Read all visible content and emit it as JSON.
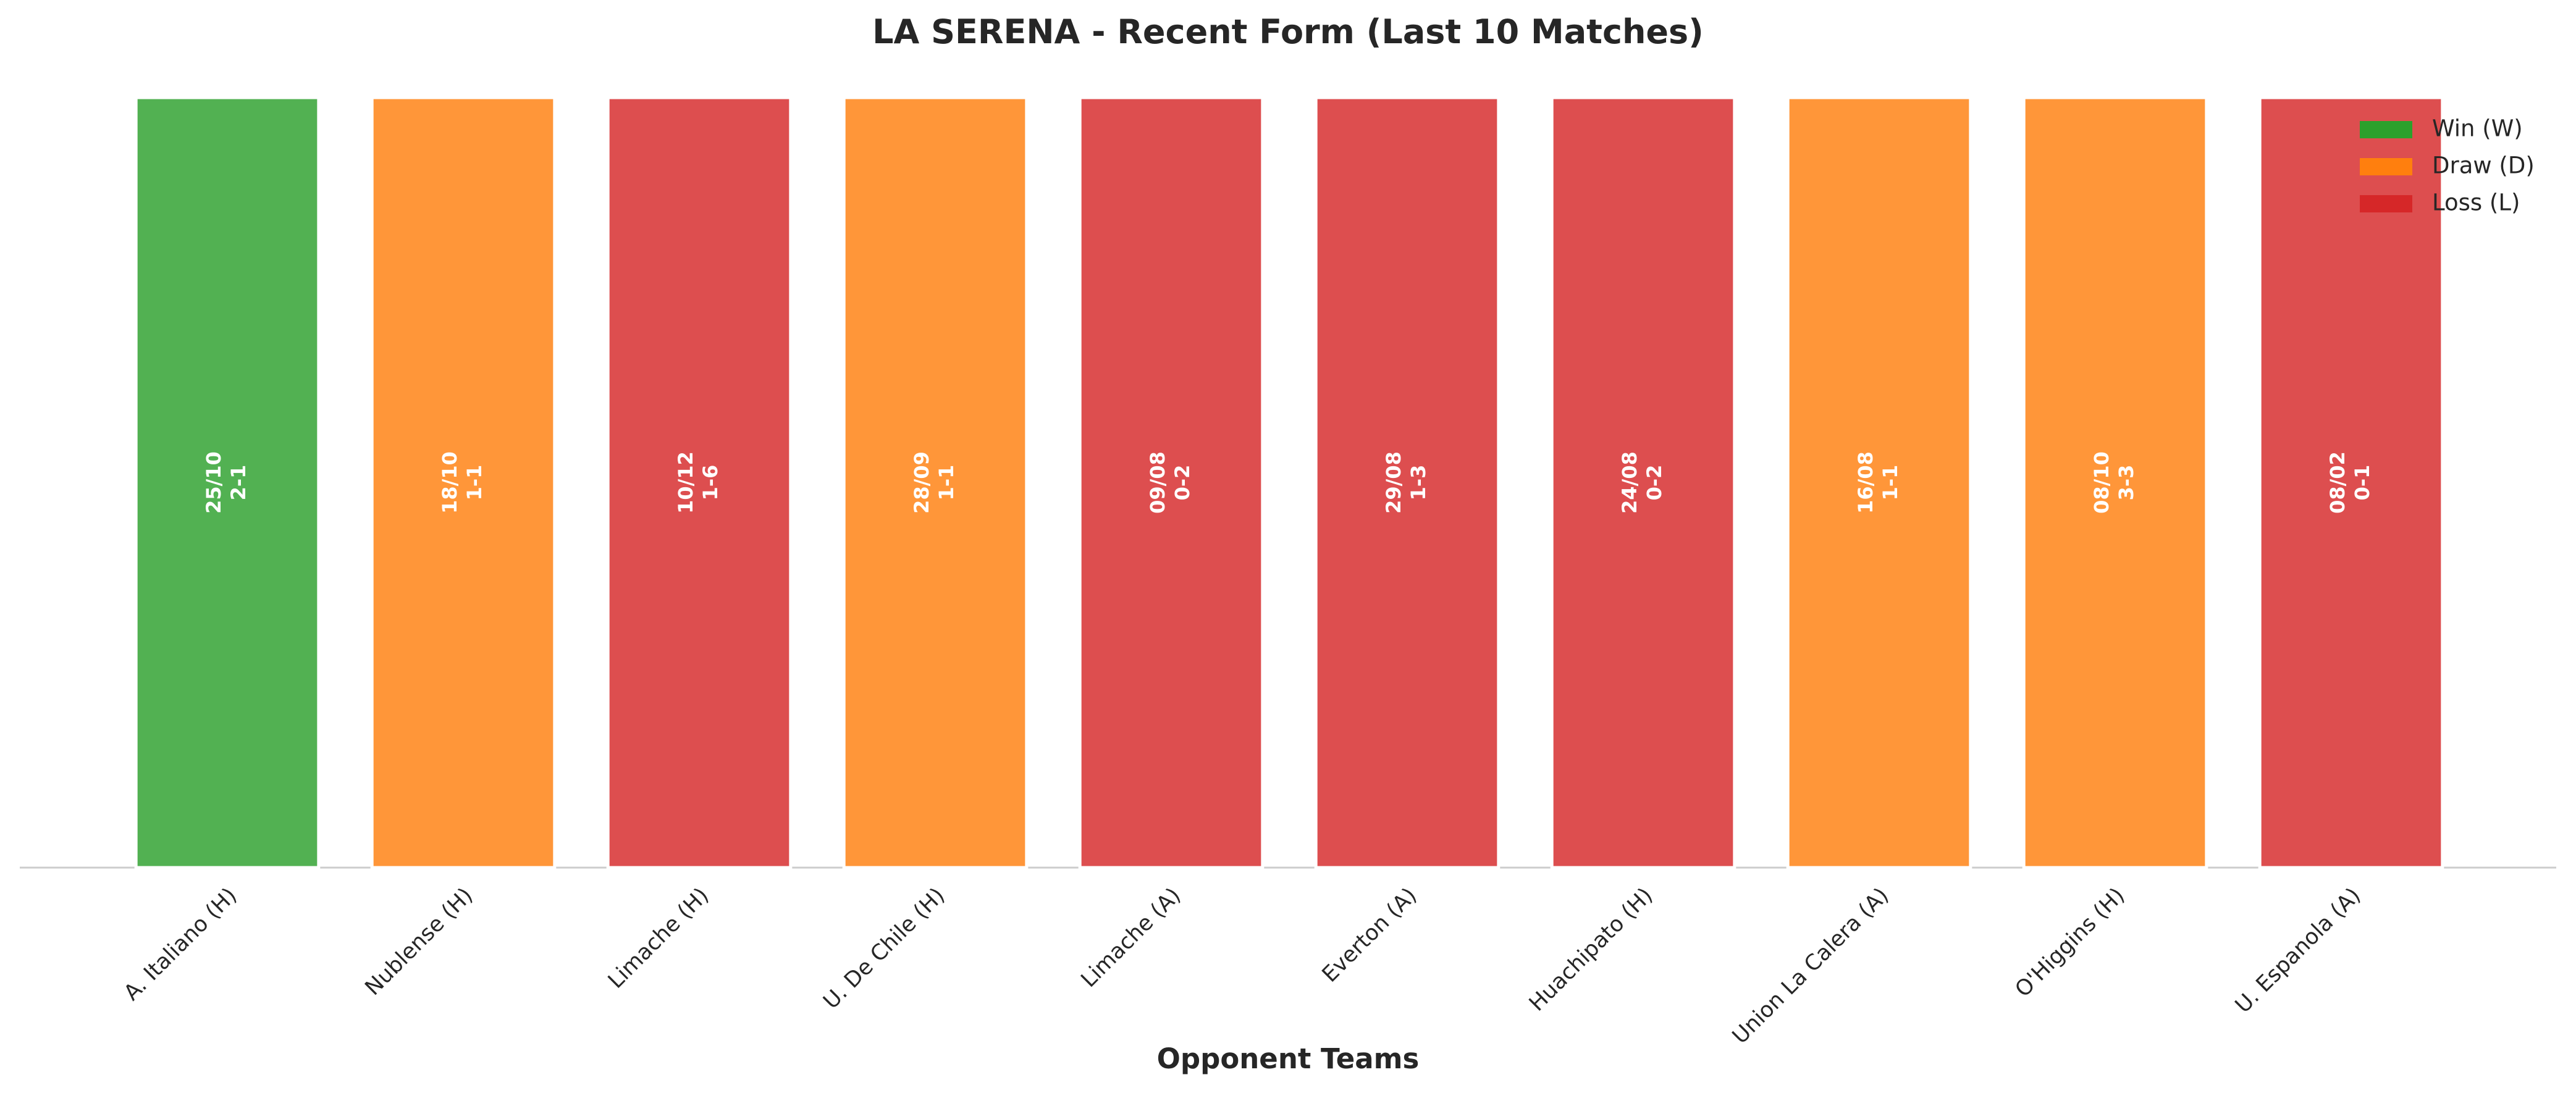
{
  "chart_data": {
    "type": "bar",
    "title": "LA SERENA - Recent Form (Last 10 Matches)",
    "xlabel": "Opponent Teams",
    "categories": [
      "A. Italiano (H)",
      "Nublense (H)",
      "Limache (H)",
      "U. De Chile (H)",
      "Limache (A)",
      "Everton (A)",
      "Huachipato (H)",
      "Union La Calera (A)",
      "O'Higgins (H)",
      "U. Espanola (A)"
    ],
    "values": [
      1,
      1,
      1,
      1,
      1,
      1,
      1,
      1,
      1,
      1
    ],
    "dates": [
      "25/10",
      "18/10",
      "10/12",
      "28/09",
      "09/08",
      "29/08",
      "24/08",
      "16/08",
      "08/10",
      "08/02"
    ],
    "scores": [
      "2-1",
      "1-1",
      "1-6",
      "1-1",
      "0-2",
      "1-3",
      "0-2",
      "1-1",
      "3-3",
      "0-1"
    ],
    "colors": [
      "#2ca02c",
      "#ff7f0e",
      "#d62728",
      "#ff7f0e",
      "#d62728",
      "#d62728",
      "#d62728",
      "#ff7f0e",
      "#ff7f0e",
      "#d62728"
    ],
    "ylim": [
      0,
      1
    ],
    "legend": [
      {
        "name": "Win (W)",
        "color": "#2ca02c"
      },
      {
        "name": "Draw (D)",
        "color": "#ff7f0e"
      },
      {
        "name": "Loss (L)",
        "color": "#d62728"
      }
    ],
    "legend_position": "upper right"
  }
}
